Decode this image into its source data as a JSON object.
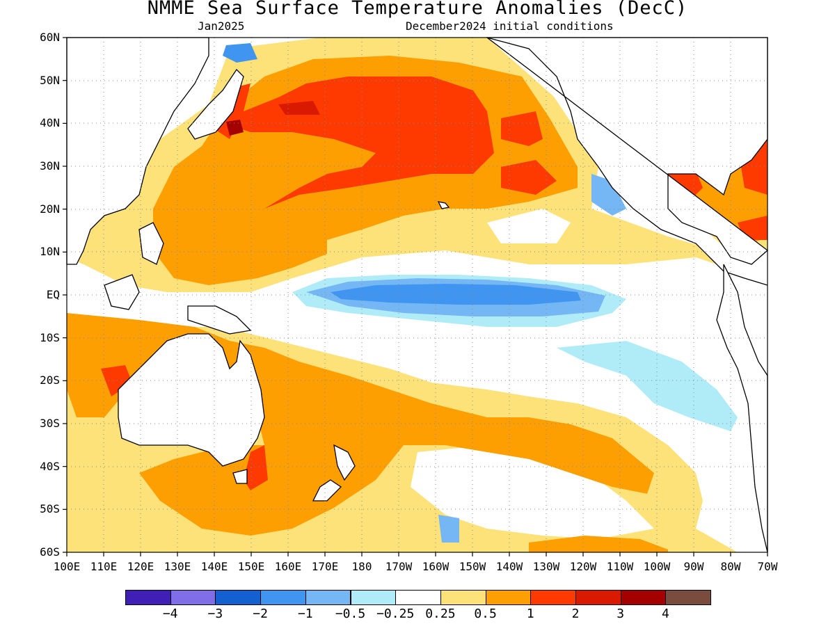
{
  "title": "NMME Sea Surface Temperature Anomalies (DecC)",
  "subtitle_left": "Jan2025",
  "subtitle_right": "December2024 initial conditions",
  "lat_labels": [
    "60N",
    "50N",
    "40N",
    "30N",
    "20N",
    "10N",
    "EQ",
    "10S",
    "20S",
    "30S",
    "40S",
    "50S",
    "60S"
  ],
  "lon_labels": [
    "100E",
    "110E",
    "120E",
    "130E",
    "140E",
    "150E",
    "160E",
    "170E",
    "180",
    "170W",
    "160W",
    "150W",
    "140W",
    "130W",
    "120W",
    "110W",
    "100W",
    "90W",
    "80W",
    "70W"
  ],
  "colorbar": {
    "colors": [
      "#3f1fb5",
      "#7f6ee8",
      "#1560d0",
      "#3f95f0",
      "#75b7f5",
      "#b0ecf8",
      "#ffffff",
      "#fde27a",
      "#fd9f00",
      "#fe3a00",
      "#d91a00",
      "#a50000",
      "#7a4c3e"
    ],
    "labels": [
      "−4",
      "−3",
      "−2",
      "−1",
      "−0.5",
      "−0.25",
      "0.25",
      "0.5",
      "1",
      "2",
      "3",
      "4"
    ]
  },
  "map_colors": {
    "weak_warm": "#fde27a",
    "warm": "#fd9f00",
    "strong_warm": "#fe3a00",
    "very_strong_warm": "#d91a00",
    "extreme_warm": "#a50000",
    "weak_cool": "#b0ecf8",
    "cool": "#75b7f5",
    "strong_cool": "#3f95f0",
    "land_outline": "#000000"
  }
}
